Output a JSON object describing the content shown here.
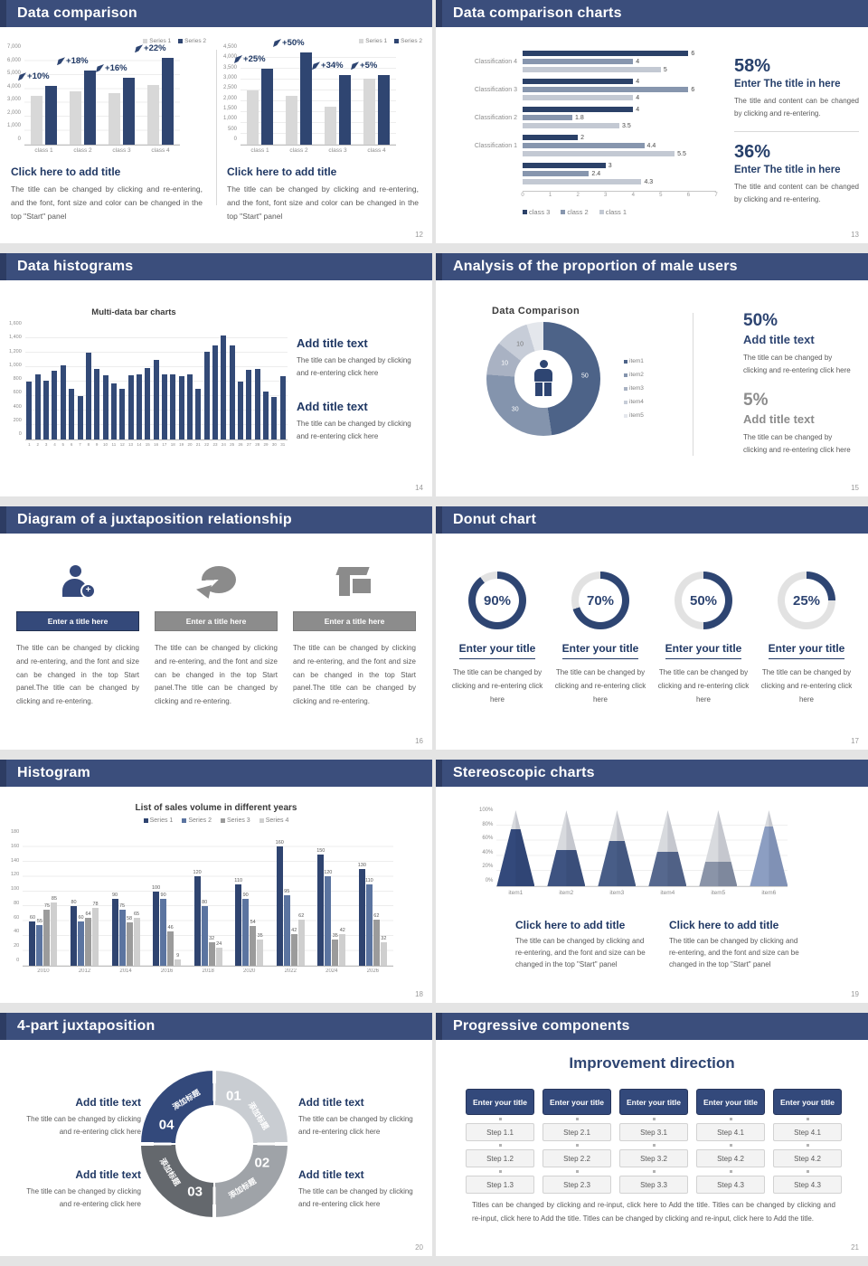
{
  "colors": {
    "slide_header_bg": "#3b4e7c",
    "slide_header_edge": "#2d3c63",
    "navy_bar": "#2f4571",
    "navy_text": "#203864",
    "body_text": "#595959",
    "light_gray_bar": "#d8d8d8",
    "hbar_series": [
      "#2b4168",
      "#8796ae",
      "#c3c9d3"
    ],
    "hist_bar": "#334a77",
    "s18_series": [
      "#2f4470",
      "#5b74a0",
      "#9b9b9b",
      "#cfcfcf"
    ],
    "donut_slices": [
      "#4d6388",
      "#8494ad",
      "#a9b2c3",
      "#c7cdd8",
      "#e4e7ec"
    ],
    "ring_fill": "#2e4572",
    "ring_track": "#e2e2e2",
    "cone_fills": [
      "#33497b",
      "#3e5381",
      "#485d87",
      "#56688e",
      "#8a94a8",
      "#8c9ec2"
    ],
    "wheel_colors": [
      "#c9cdd2",
      "#9fa3a8",
      "#64686d",
      "#33497b"
    ],
    "button_navy": "#33497b"
  },
  "slides": {
    "s12": {
      "title": "Data comparison",
      "page": "12",
      "charts": [
        {
          "type": "bar",
          "legend": [
            "Series 1",
            "Series 2"
          ],
          "categories": [
            "class 1",
            "class 2",
            "class 3",
            "class 4"
          ],
          "series": [
            {
              "name": "Series 1",
              "values": [
                3500,
                3850,
                3700,
                4300
              ]
            },
            {
              "name": "Series 2",
              "values": [
                4200,
                5300,
                4800,
                6200
              ]
            }
          ],
          "pct_labels": [
            "+10%",
            "+18%",
            "+16%",
            "+22%"
          ],
          "y_ticks": [
            "7,000",
            "6,000",
            "5,000",
            "4,000",
            "3,000",
            "2,000",
            "1,000",
            "0"
          ],
          "ymax": 7000
        },
        {
          "type": "bar",
          "legend": [
            "Series 1",
            "Series 2"
          ],
          "categories": [
            "class 1",
            "class 2",
            "class 3",
            "class 4"
          ],
          "series": [
            {
              "name": "Series 1",
              "values": [
                2500,
                2250,
                1750,
                3050
              ]
            },
            {
              "name": "Series 2",
              "values": [
                3500,
                4250,
                3200,
                3200
              ]
            }
          ],
          "pct_labels": [
            "+25%",
            "+50%",
            "+34%",
            "+5%"
          ],
          "y_ticks": [
            "4,500",
            "4,000",
            "3,500",
            "3,000",
            "2,500",
            "2,000",
            "1,500",
            "1,000",
            "500",
            "0"
          ],
          "ymax": 4500
        }
      ],
      "blocks": [
        {
          "heading": "Click here to add title",
          "body": "The title can be changed by clicking and re-entering, and the font, font size and color can be changed in the top \"Start\" panel"
        },
        {
          "heading": "Click here to add title",
          "body": "The title can be changed by clicking and re-entering, and the font, font size and color can be changed in the top \"Start\" panel"
        }
      ]
    },
    "s13": {
      "title": "Data comparison charts",
      "page": "13",
      "chart_data": {
        "type": "hbar",
        "categories": [
          "Classification 4",
          "Classification 3",
          "Classification 2",
          "Classification 1",
          ""
        ],
        "series": [
          {
            "name": "class 3",
            "values": [
              6,
              4,
              4,
              2,
              3
            ]
          },
          {
            "name": "class 2",
            "values": [
              4,
              6,
              1.8,
              4.4,
              2.4
            ]
          },
          {
            "name": "class 1",
            "values": [
              5,
              4,
              3.5,
              5.5,
              4.3
            ]
          }
        ],
        "x_ticks": [
          "0",
          "1",
          "2",
          "3",
          "4",
          "5",
          "6",
          "7"
        ],
        "xmax": 7,
        "legend": [
          "class 3",
          "class 2",
          "class 1"
        ]
      },
      "stats": [
        {
          "value": "58%",
          "heading": "Enter The title in here",
          "body": "The title and content can be changed by clicking and re-entering."
        },
        {
          "value": "36%",
          "heading": "Enter The title in here",
          "body": "The title and content can be changed by clicking and re-entering."
        }
      ]
    },
    "s14": {
      "title": "Data histograms",
      "page": "14",
      "chart_data": {
        "type": "bar",
        "title": "Multi-data bar charts",
        "categories": [
          "1",
          "2",
          "3",
          "4",
          "5",
          "6",
          "7",
          "8",
          "9",
          "10",
          "11",
          "12",
          "13",
          "14",
          "15",
          "16",
          "17",
          "18",
          "19",
          "20",
          "21",
          "22",
          "23",
          "24",
          "25",
          "26",
          "27",
          "28",
          "29",
          "30",
          "31"
        ],
        "values": [
          800,
          900,
          810,
          950,
          1020,
          700,
          600,
          1200,
          980,
          890,
          780,
          700,
          890,
          900,
          990,
          1100,
          900,
          900,
          870,
          900,
          700,
          1210,
          1300,
          1440,
          1300,
          800,
          960,
          970,
          660,
          590,
          870
        ],
        "y_ticks": [
          "1,600",
          "1,400",
          "1,200",
          "1,000",
          "800",
          "600",
          "400",
          "200",
          "0"
        ],
        "ymax": 1600
      },
      "blocks": [
        {
          "heading": "Add title text",
          "body": "The title can be changed by clicking and re-entering click here"
        },
        {
          "heading": "Add title text",
          "body": "The title can be changed by clicking and re-entering click here"
        }
      ]
    },
    "s15": {
      "title": "Analysis of the proportion of male users",
      "page": "15",
      "chart_data": {
        "type": "pie",
        "title": "Data Comparison",
        "labels": [
          "item1",
          "item2",
          "item3",
          "item4",
          "item5"
        ],
        "values": [
          50,
          30,
          10,
          10,
          5
        ],
        "slice_labels": [
          "50",
          "30",
          "10",
          "10",
          ""
        ]
      },
      "stats": [
        {
          "value": "50%",
          "heading": "Add title text",
          "body": "The title can be changed by clicking and re-entering click here",
          "tone": "navy"
        },
        {
          "value": "5%",
          "heading": "Add title text",
          "body": "The title can be changed by clicking and re-entering click here",
          "tone": "gray"
        }
      ]
    },
    "s16": {
      "title": "Diagram of a juxtaposition relationship",
      "page": "16",
      "columns": [
        {
          "icon": "female-user-plus-icon",
          "bar": "Enter a title here",
          "tone": "navy",
          "body": "The title can be changed by clicking and re-entering, and the font and size can be changed in the top Start panel.The title can be changed by clicking and re-entering."
        },
        {
          "icon": "pie-3d-icon",
          "bar": "Enter a title here",
          "tone": "gray",
          "body": "The title can be changed by clicking and re-entering, and the font and size can be changed in the top Start panel.The title can be changed by clicking and re-entering."
        },
        {
          "icon": "storefront-icon",
          "bar": "Enter a title here",
          "tone": "gray",
          "body": "The title can be changed by clicking and re-entering, and the font and size can be changed in the top Start panel.The title can be changed by clicking and re-entering."
        }
      ]
    },
    "s17": {
      "title": "Donut chart",
      "page": "17",
      "chart_data": {
        "type": "donut-rings",
        "rings": [
          {
            "percent": 90,
            "label": "90%"
          },
          {
            "percent": 70,
            "label": "70%"
          },
          {
            "percent": 50,
            "label": "50%"
          },
          {
            "percent": 25,
            "label": "25%"
          }
        ]
      },
      "ring_title": "Enter your title",
      "ring_body": "The title can be changed by clicking and re-entering click here"
    },
    "s18": {
      "title": "Histogram",
      "page": "18",
      "chart_data": {
        "type": "bar",
        "title": "List of sales volume in different years",
        "categories": [
          "2010",
          "2012",
          "2014",
          "2016",
          "2018",
          "2020",
          "2022",
          "2024",
          "2026"
        ],
        "series": [
          {
            "name": "Series 1",
            "values": [
              60,
              80,
              90,
              100,
              120,
              110,
              160,
              150,
              130
            ]
          },
          {
            "name": "Series 2",
            "values": [
              55,
              60,
              75,
              90,
              80,
              90,
              95,
              120,
              110
            ]
          },
          {
            "name": "Series 3",
            "values": [
              75,
              64,
              58,
              46,
              32,
              54,
              42,
              35,
              62
            ]
          },
          {
            "name": "Series 4",
            "values": [
              85,
              78,
              65,
              9,
              24,
              35,
              62,
              42,
              32
            ]
          }
        ],
        "y_ticks": [
          "180",
          "160",
          "140",
          "120",
          "100",
          "80",
          "60",
          "40",
          "20",
          "0"
        ],
        "ymax": 180
      }
    },
    "s19": {
      "title": "Stereoscopic charts",
      "page": "19",
      "chart_data": {
        "type": "cone",
        "categories": [
          "item1",
          "item2",
          "item3",
          "item4",
          "item5",
          "item6"
        ],
        "values_percent": [
          75,
          48,
          60,
          45,
          32,
          78
        ],
        "y_ticks": [
          "100%",
          "80%",
          "60%",
          "40%",
          "20%",
          "0%"
        ]
      },
      "blocks": [
        {
          "heading": "Click here to add title",
          "body": "The title can be changed by clicking and re-entering, and the font and size can be changed in the top \"Start\" panel"
        },
        {
          "heading": "Click here to add title",
          "body": "The title can be changed by clicking and re-entering, and the font and size can be changed in the top \"Start\" panel"
        }
      ]
    },
    "s20": {
      "title": "4-part juxtaposition",
      "page": "20",
      "segments": [
        {
          "num": "01",
          "label": "添加标题"
        },
        {
          "num": "02",
          "label": "添加标题"
        },
        {
          "num": "03",
          "label": "添加标题"
        },
        {
          "num": "04",
          "label": "添加标题"
        }
      ],
      "blocks": [
        {
          "heading": "Add title text",
          "body": "The title can be changed by clicking and re-entering click here"
        },
        {
          "heading": "Add title text",
          "body": "The title can be changed by clicking and re-entering click here"
        },
        {
          "heading": "Add title text",
          "body": "The title can be changed by clicking and re-entering click here"
        },
        {
          "heading": "Add title text",
          "body": "The title can be changed by clicking and re-entering click here"
        }
      ]
    },
    "s21": {
      "title": "Progressive components",
      "page": "21",
      "heading": "Improvement direction",
      "columns": [
        {
          "header": "Enter your title",
          "steps": [
            "Step 1.1",
            "Step 1.2",
            "Step 1.3"
          ]
        },
        {
          "header": "Enter your title",
          "steps": [
            "Step 2.1",
            "Step 2.2",
            "Step 2.3"
          ]
        },
        {
          "header": "Enter your title",
          "steps": [
            "Step 3.1",
            "Step 3.2",
            "Step 3.3"
          ]
        },
        {
          "header": "Enter your title",
          "steps": [
            "Step 4.1",
            "Step 4.2",
            "Step 4.3"
          ]
        },
        {
          "header": "Enter your title",
          "steps": [
            "Step 4.1",
            "Step 4.2",
            "Step 4.3"
          ]
        }
      ],
      "footer": "Titles can be changed by clicking and re-input, click here to Add the title. Titles can be changed by clicking and re-input, click here to Add the title. Titles can be changed by clicking and re-input, click here to Add the title."
    }
  }
}
